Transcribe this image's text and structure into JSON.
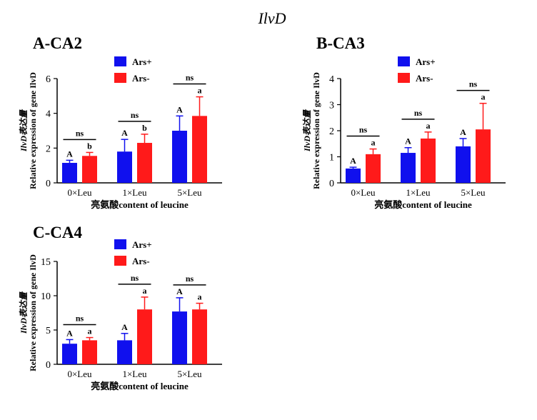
{
  "figure_title": "IlvD",
  "colors": {
    "ars_plus": "#1010ee",
    "ars_minus": "#ff1a1a",
    "axis": "#000000"
  },
  "chart_data": [
    {
      "type": "bar",
      "title": "A-CA2",
      "ylabel": "Relative expression of gene IlvD",
      "ylabel_cn": "IlvD表达量",
      "xlabel": "亮氨酸content of leucine",
      "categories": [
        "0×Leu",
        "1×Leu",
        "5×Leu"
      ],
      "ylim": [
        0,
        6
      ],
      "yticks": [
        0,
        2,
        4,
        6
      ],
      "series": [
        {
          "name": "Ars+",
          "color": "#1010ee",
          "values": [
            1.15,
            1.8,
            3.0
          ],
          "errors": [
            0.15,
            0.7,
            0.85
          ],
          "letters": [
            "A",
            "A",
            "A"
          ]
        },
        {
          "name": "Ars-",
          "color": "#ff1a1a",
          "values": [
            1.55,
            2.3,
            3.85
          ],
          "errors": [
            0.2,
            0.5,
            1.1
          ],
          "letters": [
            "b",
            "b",
            "a"
          ]
        }
      ],
      "comparisons": [
        "ns",
        "ns",
        "ns"
      ],
      "legend": "top"
    },
    {
      "type": "bar",
      "title": "B-CA3",
      "ylabel": "Relative expression of gene IlvD",
      "ylabel_cn": "IlvD表达量",
      "xlabel": "亮氨酸content of leucine",
      "categories": [
        "0×Leu",
        "1×Leu",
        "5×Leu"
      ],
      "ylim": [
        0,
        4
      ],
      "yticks": [
        0,
        1,
        2,
        3,
        4
      ],
      "series": [
        {
          "name": "Ars+",
          "color": "#1010ee",
          "values": [
            0.55,
            1.15,
            1.4
          ],
          "errors": [
            0.05,
            0.2,
            0.3
          ],
          "letters": [
            "A",
            "A",
            "A"
          ]
        },
        {
          "name": "Ars-",
          "color": "#ff1a1a",
          "values": [
            1.1,
            1.7,
            2.05
          ],
          "errors": [
            0.2,
            0.25,
            1.0
          ],
          "letters": [
            "a",
            "a",
            "a"
          ]
        }
      ],
      "comparisons": [
        "ns",
        "ns",
        "ns"
      ],
      "legend": "top"
    },
    {
      "type": "bar",
      "title": "C-CA4",
      "ylabel": "Relative expression of gene IlvD",
      "ylabel_cn": "IlvD表达量",
      "xlabel": "亮氨酸content of leucine",
      "categories": [
        "0×Leu",
        "1×Leu",
        "5×Leu"
      ],
      "ylim": [
        0,
        15
      ],
      "yticks": [
        0,
        5,
        10,
        15
      ],
      "series": [
        {
          "name": "Ars+",
          "color": "#1010ee",
          "values": [
            3.0,
            3.5,
            7.7
          ],
          "errors": [
            0.6,
            1.0,
            2.0
          ],
          "letters": [
            "A",
            "A",
            "A"
          ]
        },
        {
          "name": "Ars-",
          "color": "#ff1a1a",
          "values": [
            3.5,
            8.0,
            8.0
          ],
          "errors": [
            0.4,
            1.8,
            0.9
          ],
          "letters": [
            "a",
            "a",
            "a"
          ]
        }
      ],
      "comparisons": [
        "ns",
        "ns",
        "ns"
      ],
      "legend": "top"
    }
  ]
}
